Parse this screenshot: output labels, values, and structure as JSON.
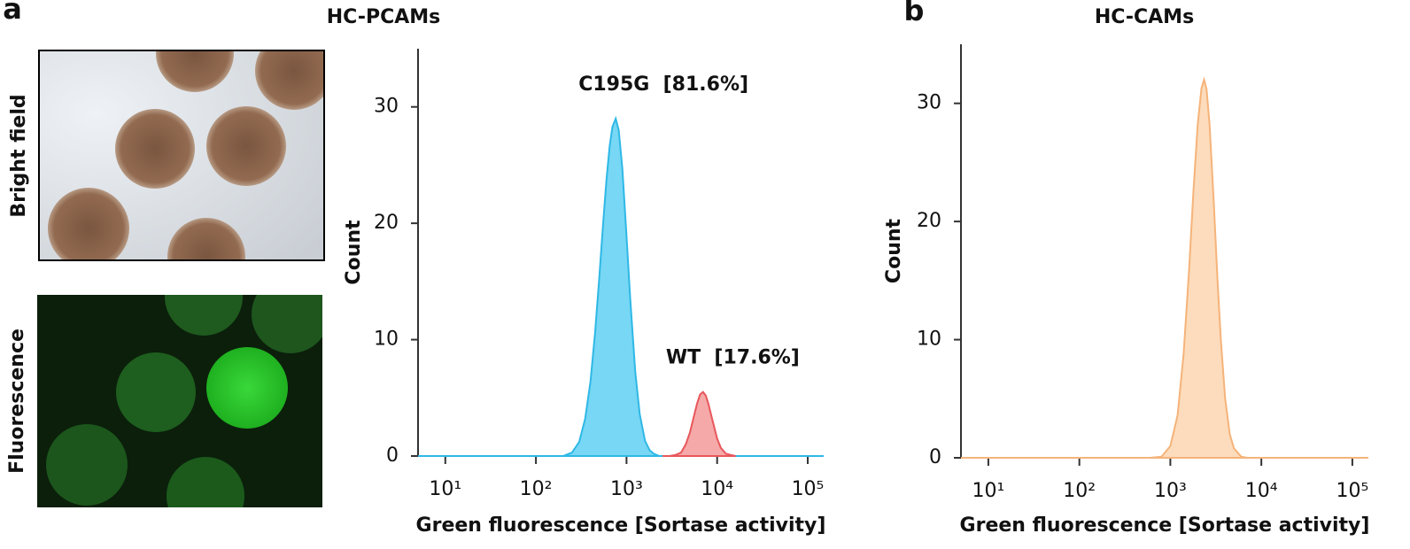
{
  "panel_a_images": [
    "Bright field",
    "Fluorescence"
  ],
  "chart_data": [
    {
      "type": "area",
      "panel_label": "a",
      "title": "HC-PCAMs",
      "xlabel": "Green fluorescence [Sortase activity]",
      "ylabel": "Count",
      "xscale": "log",
      "xlim": [
        5,
        150000
      ],
      "ylim": [
        0,
        35
      ],
      "xticks": [
        {
          "value": 10,
          "label": "10¹"
        },
        {
          "value": 100,
          "label": "10²"
        },
        {
          "value": 1000,
          "label": "10³"
        },
        {
          "value": 10000,
          "label": "10⁴"
        },
        {
          "value": 100000,
          "label": "10⁵"
        }
      ],
      "yticks": [
        0,
        10,
        20,
        30
      ],
      "annotations": [
        "C195G  [81.6%]",
        "WT  [17.6%]"
      ],
      "series": [
        {
          "color": "#2fb8e6",
          "fill": "#5fd0f2",
          "x": [
            5,
            150,
            200,
            250,
            300,
            350,
            400,
            450,
            500,
            550,
            600,
            650,
            700,
            760,
            820,
            900,
            1000,
            1100,
            1250,
            1400,
            1600,
            1800,
            2000,
            2300,
            150000
          ],
          "values": [
            0,
            0,
            0,
            0.3,
            1.2,
            3.2,
            6.4,
            10.6,
            15.3,
            19.8,
            23.7,
            26.6,
            28.3,
            29,
            28,
            24.7,
            18.9,
            13.5,
            7.2,
            3.6,
            1.3,
            0.5,
            0.2,
            0,
            0
          ]
        },
        {
          "color": "#e8575c",
          "fill": "#f39a9a",
          "x": [
            2500,
            3000,
            3500,
            4000,
            4500,
            5000,
            5500,
            6000,
            6500,
            7000,
            7500,
            8000,
            9000,
            10000,
            11000,
            12500,
            14000,
            16000
          ],
          "values": [
            0,
            0,
            0.1,
            0.3,
            1,
            2,
            3.3,
            4.5,
            5.3,
            5.5,
            5.2,
            4.5,
            2.9,
            1.5,
            0.7,
            0.2,
            0.1,
            0
          ]
        }
      ]
    },
    {
      "type": "area",
      "panel_label": "b",
      "title": "HC-CAMs",
      "xlabel": "Green fluorescence [Sortase activity]",
      "ylabel": "Count",
      "xscale": "log",
      "xlim": [
        5,
        150000
      ],
      "ylim": [
        0,
        35
      ],
      "xticks": [
        {
          "value": 10,
          "label": "10¹"
        },
        {
          "value": 100,
          "label": "10²"
        },
        {
          "value": 1000,
          "label": "10³"
        },
        {
          "value": 10000,
          "label": "10⁴"
        },
        {
          "value": 100000,
          "label": "10⁵"
        }
      ],
      "yticks": [
        0,
        10,
        20,
        30
      ],
      "series": [
        {
          "color": "#f5b37a",
          "fill": "#fbd6b0",
          "x": [
            5,
            600,
            800,
            1000,
            1200,
            1400,
            1600,
            1800,
            2000,
            2200,
            2350,
            2500,
            2700,
            3000,
            3300,
            3600,
            4000,
            4500,
            5000,
            6000,
            7000,
            150000
          ],
          "values": [
            0,
            0,
            0.1,
            1,
            3.6,
            8.8,
            15.7,
            22.7,
            28.2,
            31.3,
            32,
            31.2,
            28.2,
            21.7,
            15,
            9.8,
            5,
            2,
            0.8,
            0.1,
            0,
            0
          ]
        }
      ]
    }
  ]
}
